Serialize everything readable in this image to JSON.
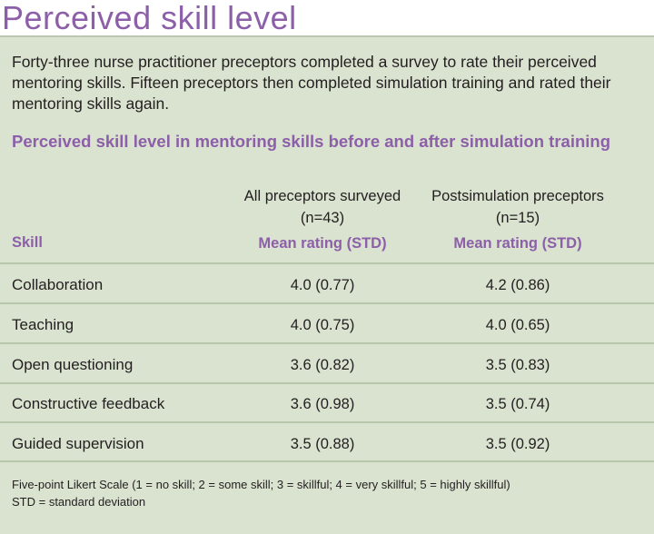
{
  "title": "Perceived skill level",
  "intro": "Forty-three nurse practitioner preceptors completed a survey to rate their perceived mentoring skills. Fifteen preceptors then completed simulation training and rated their mentoring skills again.",
  "table": {
    "title": "Perceived skill level in mentoring skills before and after simulation training",
    "skill_header": "Skill",
    "columns": [
      {
        "label_line1": "All preceptors surveyed",
        "label_line2": "(n=43)",
        "subheader": "Mean rating (STD)"
      },
      {
        "label_line1": "Postsimulation preceptors",
        "label_line2": "(n=15)",
        "subheader": "Mean rating (STD)"
      }
    ],
    "rows": [
      {
        "skill": "Collaboration",
        "all": "4.0 (0.77)",
        "post": "4.2 (0.86)"
      },
      {
        "skill": "Teaching",
        "all": "4.0 (0.75)",
        "post": "4.0 (0.65)"
      },
      {
        "skill": "Open questioning",
        "all": "3.6 (0.82)",
        "post": "3.5 (0.83)"
      },
      {
        "skill": "Constructive feedback",
        "all": "3.6 (0.98)",
        "post": "3.5 (0.74)"
      },
      {
        "skill": "Guided supervision",
        "all": "3.5 (0.88)",
        "post": "3.5 (0.92)"
      }
    ]
  },
  "footnotes": [
    "Five-point Likert Scale (1 = no skill; 2 = some skill; 3 = skillful; 4 = very skillful; 5 = highly skillful)",
    "STD = standard deviation"
  ],
  "colors": {
    "accent": "#8c5fa8",
    "panel": "#d9e3d0",
    "rule": "#b8c6ab"
  }
}
